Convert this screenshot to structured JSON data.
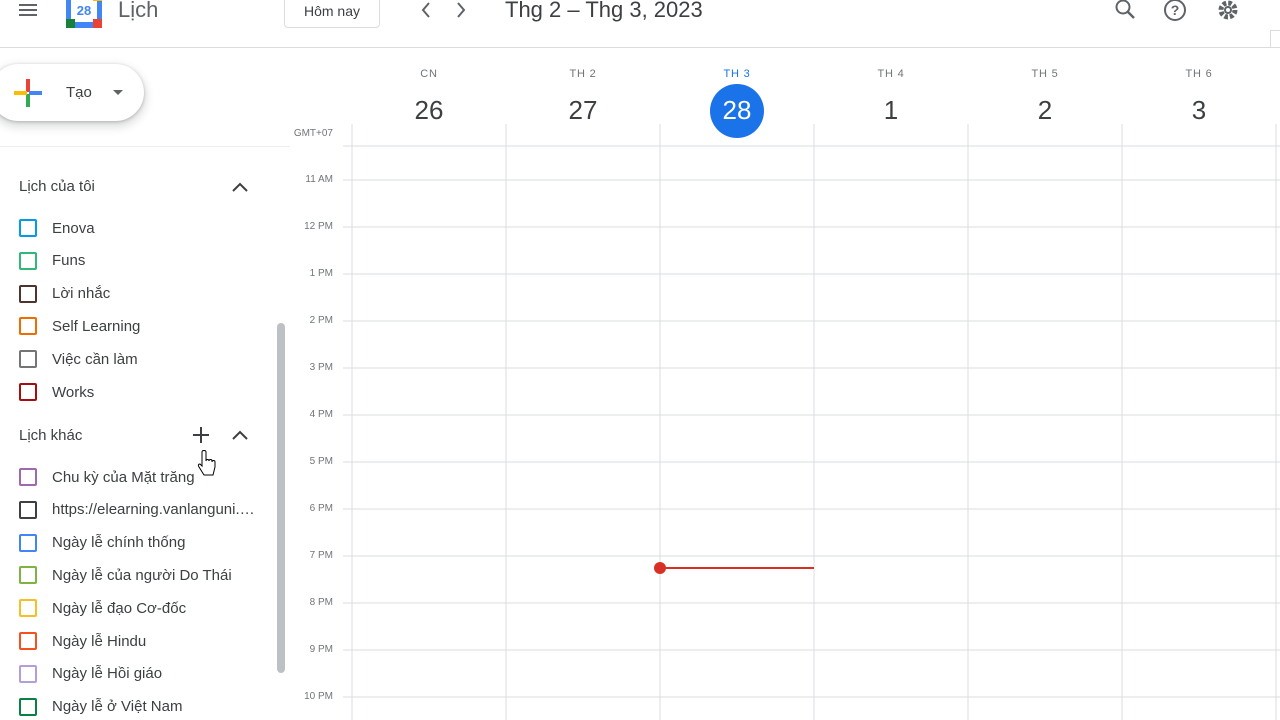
{
  "header": {
    "app_title": "Lịch",
    "logo_date": "28",
    "today_button": "Hôm nay",
    "date_range": "Thg 2 – Thg 3, 2023"
  },
  "create_button": "Tạo",
  "my_calendars": {
    "title": "Lịch của tôi",
    "items": [
      {
        "name": "Enova",
        "color": "#039be5"
      },
      {
        "name": "Funs",
        "color": "#33b679"
      },
      {
        "name": "Lời nhắc",
        "color": "#4e342e"
      },
      {
        "name": "Self Learning",
        "color": "#ef6c00"
      },
      {
        "name": "Việc cần làm",
        "color": "#757575"
      },
      {
        "name": "Works",
        "color": "#a50e0e"
      }
    ]
  },
  "other_calendars": {
    "title": "Lịch khác",
    "items": [
      {
        "name": "Chu kỳ của Mặt trăng",
        "color": "#9e69af"
      },
      {
        "name": "https://elearning.vanlanguni.edu.vn",
        "color": "#3c4043"
      },
      {
        "name": "Ngày lễ chính thống",
        "color": "#4285f4"
      },
      {
        "name": "Ngày lễ của người Do Thái",
        "color": "#7cb342"
      },
      {
        "name": "Ngày lễ đạo Cơ-đốc",
        "color": "#f6bf26"
      },
      {
        "name": "Ngày lễ Hindu",
        "color": "#f4511e"
      },
      {
        "name": "Ngày lễ Hồi giáo",
        "color": "#b39ddb"
      },
      {
        "name": "Ngày lễ ở Việt Nam",
        "color": "#0b8043"
      }
    ]
  },
  "days": [
    {
      "weekday": "CN",
      "date": 26
    },
    {
      "weekday": "TH 2",
      "date": 27
    },
    {
      "weekday": "TH 3",
      "date": 28,
      "today": true
    },
    {
      "weekday": "TH 4",
      "date": 1
    },
    {
      "weekday": "TH 5",
      "date": 2
    },
    {
      "weekday": "TH 6",
      "date": 3
    }
  ],
  "timezone": "GMT+07",
  "hours": [
    "11 AM",
    "12 PM",
    "1 PM",
    "2 PM",
    "3 PM",
    "4 PM",
    "5 PM",
    "6 PM",
    "7 PM",
    "8 PM",
    "9 PM",
    "10 PM"
  ]
}
